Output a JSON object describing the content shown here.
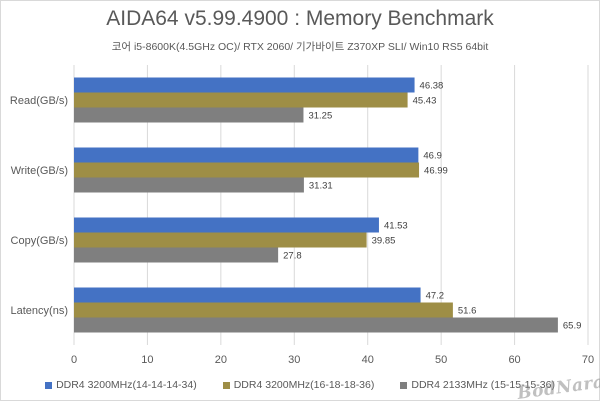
{
  "title": "AIDA64 v5.99.4900 : Memory Benchmark",
  "subtitle": "코어 i5-8600K(4.5GHz OC)/ RTX 2060/ 기가바이트 Z370XP SLI/ Win10 RS5 64bit",
  "watermark": "BodNara",
  "chart_data": {
    "type": "bar",
    "orientation": "horizontal",
    "categories": [
      "Read(GB/s)",
      "Write(GB/s)",
      "Copy(GB/s)",
      "Latency(ns)"
    ],
    "series": [
      {
        "name": "DDR4 3200MHz(14-14-14-34)",
        "color": "#4472c4",
        "values": [
          46.38,
          46.9,
          41.53,
          47.2
        ]
      },
      {
        "name": "DDR4 3200MHz(16-18-18-36)",
        "color": "#9e8e46",
        "values": [
          45.43,
          46.99,
          39.85,
          51.6
        ]
      },
      {
        "name": "DDR4 2133MHz (15-15-15-36)",
        "color": "#7f7f7f",
        "values": [
          31.25,
          31.31,
          27.8,
          65.9
        ]
      }
    ],
    "value_labels": [
      [
        "46.38",
        "46.9",
        "41.53",
        "47.2"
      ],
      [
        "45.43",
        "46.99",
        "39.85",
        "51.6"
      ],
      [
        "31.25",
        "31.31",
        "27.8",
        "65.9"
      ]
    ],
    "xlim": [
      0,
      70
    ],
    "xticks": [
      0,
      10,
      20,
      30,
      40,
      50,
      60,
      70
    ],
    "grid": true,
    "legend_position": "bottom"
  }
}
